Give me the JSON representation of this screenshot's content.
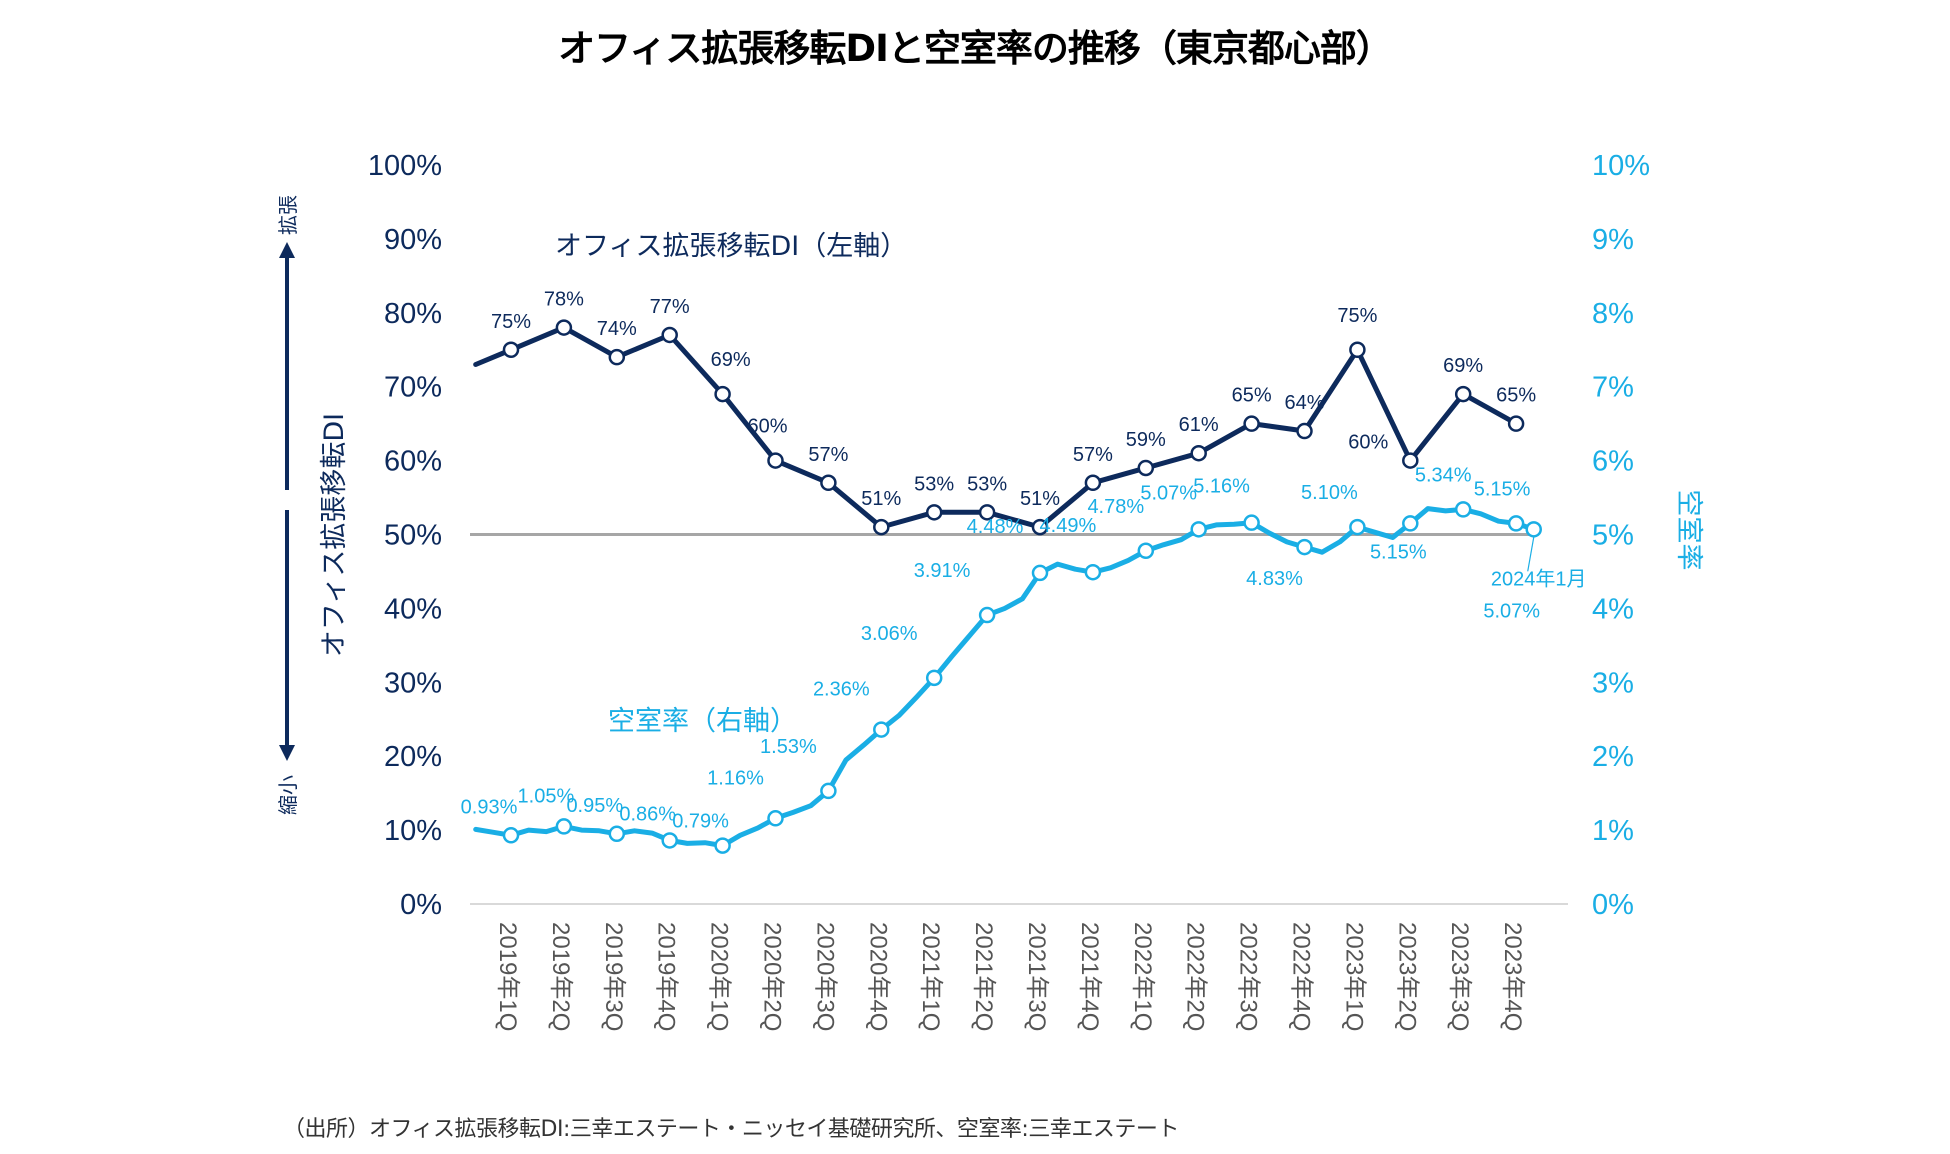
{
  "chart_data": {
    "type": "line",
    "title": "オフィス拡張移転DIと空室率の推移（東京都心部）",
    "categories": [
      "2019年1Q",
      "2019年2Q",
      "2019年3Q",
      "2019年4Q",
      "2020年1Q",
      "2020年2Q",
      "2020年3Q",
      "2020年4Q",
      "2021年1Q",
      "2021年2Q",
      "2021年3Q",
      "2021年4Q",
      "2022年1Q",
      "2022年2Q",
      "2022年3Q",
      "2022年4Q",
      "2023年1Q",
      "2023年2Q",
      "2023年3Q",
      "2023年4Q"
    ],
    "left_axis": {
      "title": "オフィス拡張移転DI",
      "ylim": [
        0,
        100
      ],
      "ticks": [
        "0%",
        "10%",
        "20%",
        "30%",
        "40%",
        "50%",
        "60%",
        "70%",
        "80%",
        "90%",
        "100%"
      ],
      "reference_line": 50,
      "up_label": "拡張",
      "down_label": "縮小"
    },
    "right_axis": {
      "title": "空室率",
      "ylim": [
        0,
        10
      ],
      "ticks": [
        "0%",
        "1%",
        "2%",
        "3%",
        "4%",
        "5%",
        "6%",
        "7%",
        "8%",
        "9%",
        "10%"
      ]
    },
    "series": [
      {
        "name": "オフィス拡張移転DI（左軸）",
        "axis": "left",
        "color": "#0d2a5c",
        "start_value": 73,
        "values": [
          75,
          78,
          74,
          77,
          69,
          60,
          57,
          51,
          53,
          53,
          51,
          57,
          59,
          61,
          65,
          64,
          75,
          60,
          69,
          65
        ],
        "labels": [
          "75%",
          "78%",
          "74%",
          "77%",
          "69%",
          "60%",
          "57%",
          "51%",
          "53%",
          "53%",
          "51%",
          "57%",
          "59%",
          "61%",
          "65%",
          "64%",
          "75%",
          "60%",
          "69%",
          "65%"
        ]
      },
      {
        "name": "空室率（右軸）",
        "axis": "right",
        "color": "#1aaee5",
        "monthly_values": [
          1.01,
          0.97,
          0.93,
          1.0,
          0.98,
          1.05,
          1.0,
          0.99,
          0.95,
          0.99,
          0.96,
          0.86,
          0.82,
          0.83,
          0.79,
          0.93,
          1.03,
          1.16,
          1.24,
          1.33,
          1.53,
          1.95,
          2.15,
          2.36,
          2.55,
          2.8,
          3.06,
          3.35,
          3.63,
          3.91,
          4.0,
          4.13,
          4.48,
          4.6,
          4.53,
          4.49,
          4.55,
          4.65,
          4.78,
          4.86,
          4.93,
          5.07,
          5.13,
          5.14,
          5.16,
          5.02,
          4.9,
          4.83,
          4.76,
          4.9,
          5.1,
          5.03,
          4.96,
          5.15,
          5.35,
          5.32,
          5.34,
          5.28,
          5.18,
          5.15,
          5.07
        ],
        "marker_labels": [
          "0.93%",
          "1.05%",
          "0.95%",
          "0.86%",
          "0.79%",
          "1.16%",
          "1.53%",
          "2.36%",
          "3.06%",
          "3.91%",
          "4.48%",
          "4.49%",
          "4.78%",
          "5.07%",
          "5.16%",
          "4.83%",
          "5.10%",
          "5.15%",
          "5.34%",
          "5.15%",
          "5.07%"
        ],
        "last_point_callout": "2024年1月"
      }
    ],
    "source": "（出所）オフィス拡張移転DI:三幸エステート・ニッセイ基礎研究所、空室率:三幸エステート",
    "grid": false,
    "legend": "inline-labels"
  }
}
